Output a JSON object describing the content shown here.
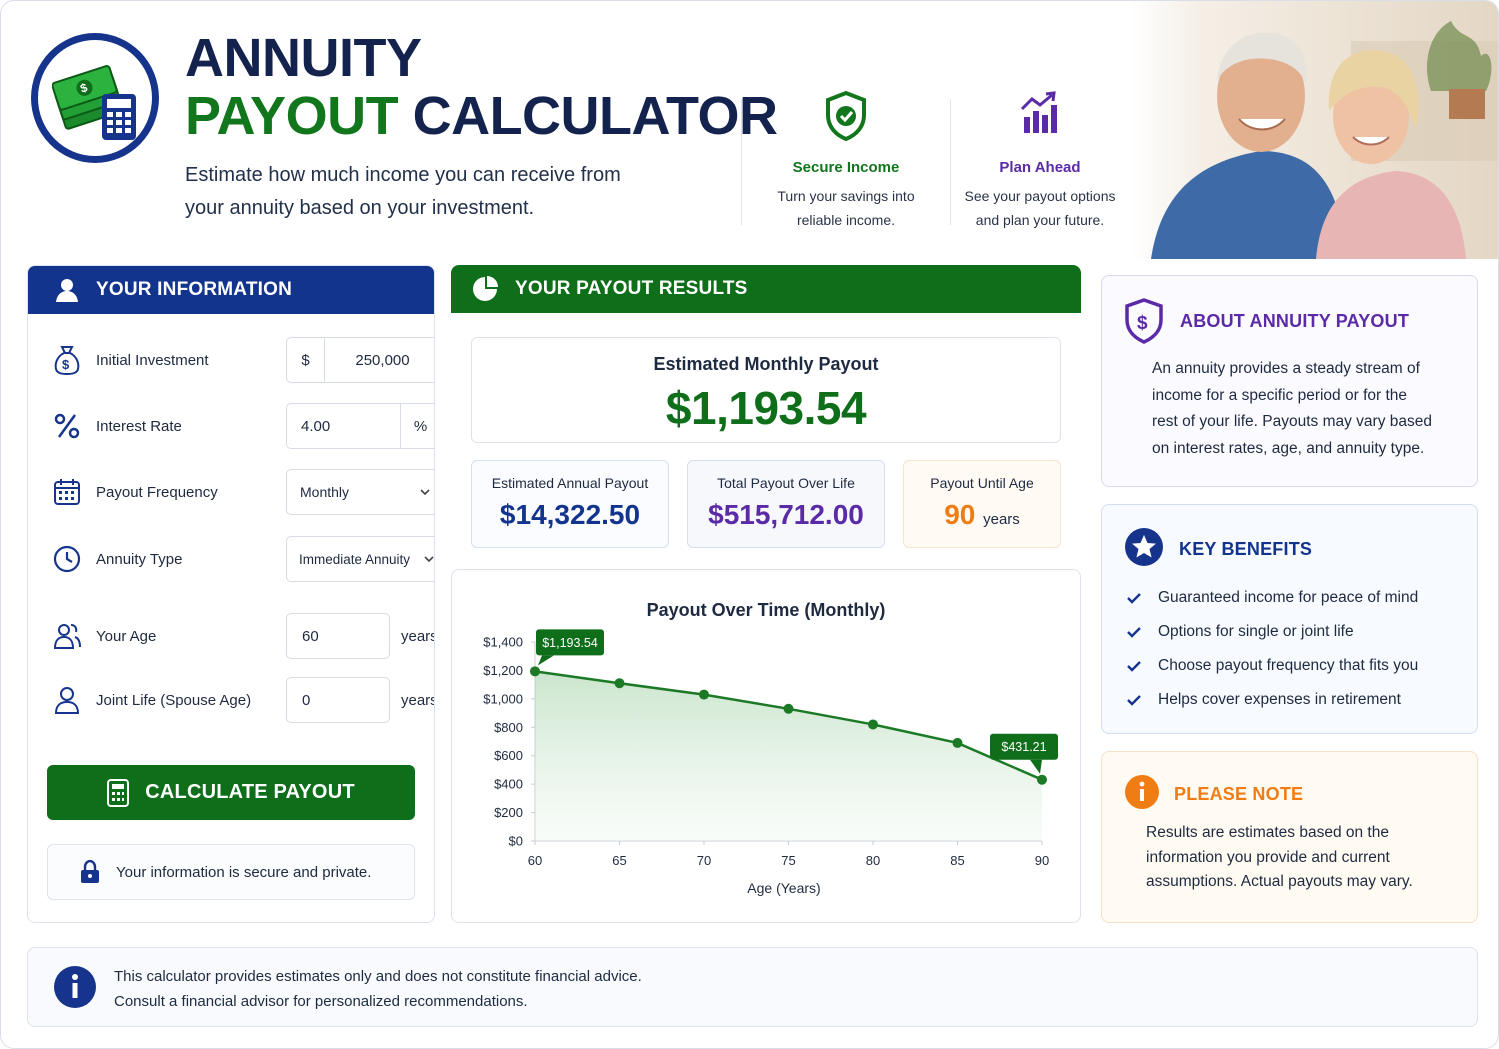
{
  "header": {
    "title_line1": "ANNUITY",
    "title_word_green": "PAYOUT",
    "title_word_dark": "CALCULATOR",
    "subtitle_line1": "Estimate how much income you can receive from",
    "subtitle_line2": "your annuity based on your investment.",
    "features": [
      {
        "icon": "shield-check-icon",
        "title": "Secure Income",
        "line1": "Turn your savings into",
        "line2": "reliable income.",
        "color": "#12761d"
      },
      {
        "icon": "growth-chart-icon",
        "title": "Plan Ahead",
        "line1": "See your payout options",
        "line2": "and plan your future.",
        "color": "#5b2aa6"
      }
    ]
  },
  "info_panel": {
    "title": "YOUR INFORMATION",
    "fields": {
      "initial_investment": {
        "label": "Initial Investment",
        "prefix": "$",
        "value": "250,000"
      },
      "interest_rate": {
        "label": "Interest Rate",
        "value": "4.00",
        "suffix": "%"
      },
      "payout_frequency": {
        "label": "Payout Frequency",
        "value": "Monthly"
      },
      "annuity_type": {
        "label": "Annuity Type",
        "value": "Immediate Annuity"
      },
      "your_age": {
        "label": "Your Age",
        "value": "60",
        "unit": "years"
      },
      "joint_life": {
        "label": "Joint Life (Spouse Age)",
        "value": "0",
        "unit": "years"
      }
    },
    "calculate_label": "CALCULATE PAYOUT",
    "secure_note": "Your information is secure and private."
  },
  "results_panel": {
    "title": "YOUR PAYOUT RESULTS",
    "monthly": {
      "label": "Estimated Monthly Payout",
      "value": "$1,193.54"
    },
    "annual": {
      "label": "Estimated Annual Payout",
      "value": "$14,322.50"
    },
    "total": {
      "label": "Total Payout Over Life",
      "value": "$515,712.00"
    },
    "until_age": {
      "label": "Payout Until Age",
      "value": "90",
      "unit": "years"
    }
  },
  "chart_data": {
    "type": "area",
    "title": "Payout Over Time (Monthly)",
    "xlabel": "Age (Years)",
    "ylabel": "",
    "x": [
      60,
      65,
      70,
      75,
      80,
      85,
      90
    ],
    "values": [
      1193.54,
      1110,
      1030,
      930,
      820,
      690,
      431.21
    ],
    "ylim": [
      0,
      1400
    ],
    "yticks": [
      "$0",
      "$200",
      "$400",
      "$600",
      "$800",
      "$1,000",
      "$1,200",
      "$1,400"
    ],
    "ytick_values": [
      0,
      200,
      400,
      600,
      800,
      1000,
      1200,
      1400
    ],
    "xticks": [
      "60",
      "65",
      "70",
      "75",
      "80",
      "85",
      "90"
    ],
    "annotations": [
      {
        "x": 60,
        "label": "$1,193.54"
      },
      {
        "x": 90,
        "label": "$431.21"
      }
    ],
    "grid": false,
    "color": "#1c7a26"
  },
  "about": {
    "title": "ABOUT ANNUITY PAYOUT",
    "lines": [
      "An annuity provides a steady stream of",
      "income for a specific period or for the",
      "rest of your life. Payouts may vary based",
      "on interest rates, age, and annuity type."
    ]
  },
  "benefits": {
    "title": "KEY BENEFITS",
    "items": [
      "Guaranteed income for peace of mind",
      "Options for single or joint life",
      "Choose payout frequency that fits you",
      "Helps cover expenses in retirement"
    ]
  },
  "note": {
    "title": "PLEASE NOTE",
    "lines": [
      "Results are estimates based on the",
      "information you provide and current",
      "assumptions. Actual payouts may vary."
    ]
  },
  "footer": {
    "line1": "This calculator provides estimates only and does not constitute financial advice.",
    "line2": "Consult a financial advisor for personalized recommendations."
  },
  "colors": {
    "navy": "#13348c",
    "green": "#0f6e1a",
    "purple": "#5b2aa6",
    "orange": "#ef7d14"
  }
}
